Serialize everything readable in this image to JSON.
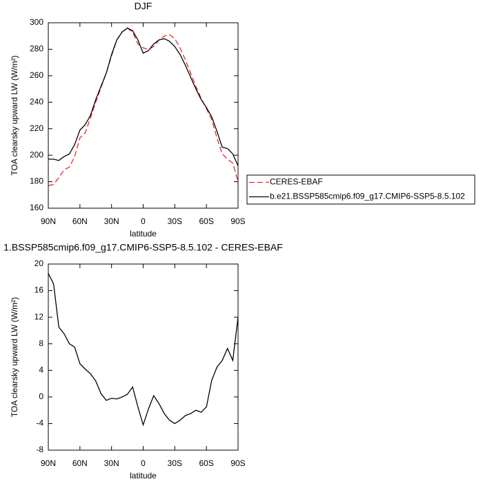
{
  "chart_data": [
    {
      "type": "line",
      "title": "DJF",
      "xlabel": "latitude",
      "ylabel": "TOA clearsky upward LW (W/m²)",
      "x": [
        90,
        85,
        80,
        75,
        70,
        65,
        60,
        55,
        50,
        45,
        40,
        35,
        30,
        25,
        20,
        15,
        10,
        5,
        0,
        -5,
        -10,
        -15,
        -20,
        -25,
        -30,
        -35,
        -40,
        -45,
        -50,
        -55,
        -60,
        -65,
        -70,
        -75,
        -80,
        -85,
        -90
      ],
      "xlim": [
        90,
        -90
      ],
      "xticks": [
        {
          "value": 90,
          "label": "90N"
        },
        {
          "value": 60,
          "label": "60N"
        },
        {
          "value": 30,
          "label": "30N"
        },
        0,
        {
          "value": -30,
          "label": "30S"
        },
        {
          "value": -60,
          "label": "60S"
        },
        {
          "value": -90,
          "label": "90S"
        }
      ],
      "ylim": [
        160,
        300
      ],
      "yticks": [
        160,
        180,
        200,
        220,
        240,
        260,
        280,
        300
      ],
      "legend": "right",
      "series": [
        {
          "name": "CERES-EBAF",
          "color": "#e8262a",
          "dashed": true,
          "values": [
            177,
            178,
            183,
            189,
            191,
            199,
            213,
            217,
            228,
            240,
            251,
            262,
            275,
            287,
            293,
            296,
            293,
            284,
            281,
            280,
            282,
            287,
            290,
            291,
            288,
            281,
            272,
            262,
            252,
            243,
            235,
            227,
            213,
            201,
            197,
            194,
            180
          ]
        },
        {
          "name": "b.e21.BSSP585cmip6.f09_g17.CMIP6-SSP5-8.5.102",
          "color": "#000000",
          "dashed": false,
          "values": [
            197,
            197,
            196,
            199,
            201,
            208,
            219,
            223,
            230,
            242,
            252,
            262,
            276,
            287,
            293,
            296,
            294,
            287,
            277,
            279,
            284,
            287,
            288,
            286,
            282,
            276,
            268,
            259,
            250,
            242,
            236,
            229,
            218,
            206,
            205,
            201,
            192
          ]
        }
      ]
    },
    {
      "type": "line",
      "title": "1.BSSP585cmip6.f09_g17.CMIP6-SSP5-8.5.102 - CERES-EBAF",
      "xlabel": "latitude",
      "ylabel": "TOA clearsky upward LW (W/m²)",
      "x": [
        90,
        85,
        80,
        75,
        70,
        65,
        60,
        55,
        50,
        45,
        40,
        35,
        30,
        25,
        20,
        15,
        10,
        5,
        0,
        -5,
        -10,
        -15,
        -20,
        -25,
        -30,
        -35,
        -40,
        -45,
        -50,
        -55,
        -60,
        -65,
        -70,
        -75,
        -80,
        -85,
        -90
      ],
      "xlim": [
        90,
        -90
      ],
      "xticks": [
        {
          "value": 90,
          "label": "90N"
        },
        {
          "value": 60,
          "label": "60N"
        },
        {
          "value": 30,
          "label": "30N"
        },
        0,
        {
          "value": -30,
          "label": "30S"
        },
        {
          "value": -60,
          "label": "60S"
        },
        {
          "value": -90,
          "label": "90S"
        }
      ],
      "ylim": [
        -8,
        20
      ],
      "yticks": [
        -8,
        -4,
        0,
        4,
        8,
        12,
        16,
        20
      ],
      "series": [
        {
          "color": "#000000",
          "dashed": false,
          "values": [
            18.6,
            17,
            10.5,
            9.5,
            8,
            7.5,
            5,
            4.2,
            3.5,
            2.4,
            0.5,
            -0.5,
            -0.2,
            -0.3,
            0,
            0.4,
            1.5,
            -1.5,
            -4.2,
            -1.8,
            0.2,
            -1,
            -2.5,
            -3.5,
            -4,
            -3.5,
            -2.8,
            -2.5,
            -2,
            -2.3,
            -1.5,
            2.5,
            4.5,
            5.5,
            7.3,
            5.5,
            12
          ]
        }
      ]
    }
  ]
}
